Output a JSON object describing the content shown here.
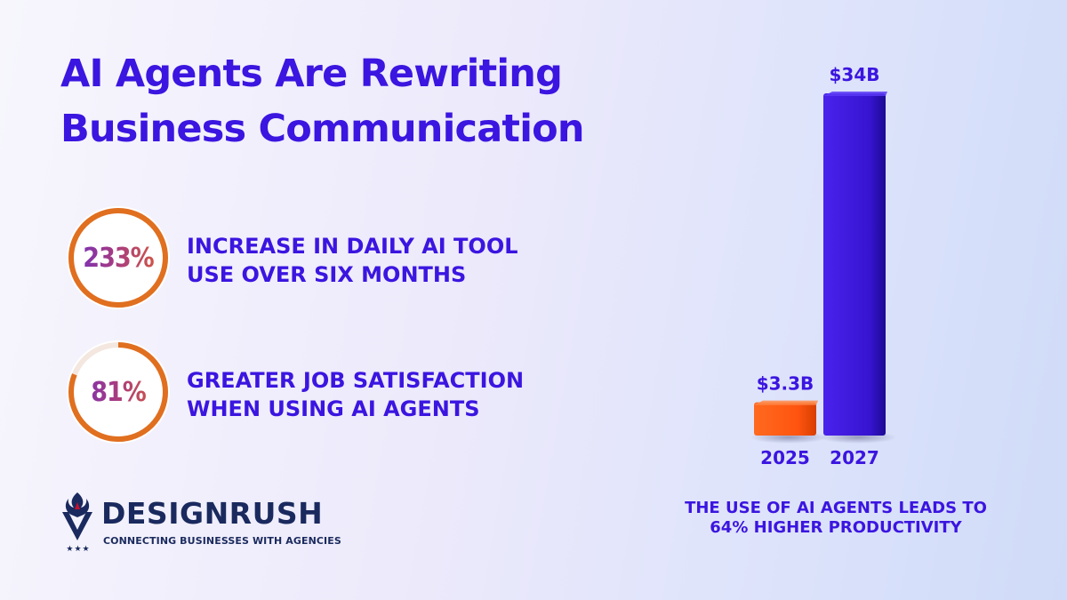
{
  "title": {
    "line1": "AI Agents Are Rewriting",
    "line2": "Business Communication"
  },
  "stats": [
    {
      "value": "233%",
      "ring_fraction": 1.0,
      "line1": "INCREASE IN DAILY AI TOOL",
      "line2": "USE OVER SIX MONTHS"
    },
    {
      "value": "81%",
      "ring_fraction": 0.81,
      "line1": "GREATER JOB SATISFACTION",
      "line2": "WHEN USING AI AGENTS"
    }
  ],
  "chart_data": {
    "type": "bar",
    "categories": [
      "2025",
      "2027"
    ],
    "values": [
      3.3,
      34
    ],
    "data_labels": [
      "$3.3B",
      "$34B"
    ],
    "colors": [
      "#ff5a14",
      "#3a14d8"
    ],
    "unit": "$B",
    "ylim": [
      0,
      34
    ],
    "title": "",
    "xlabel": "",
    "ylabel": ""
  },
  "caption": {
    "line1": "THE USE OF AI AGENTS LEADS TO",
    "line2": "64% HIGHER PRODUCTIVITY"
  },
  "brand": {
    "name": "DESIGNRUSH",
    "tagline": "CONNECTING BUSINESSES WITH AGENCIES",
    "stars": "★★★",
    "icon": "designrush-flame-shield-icon"
  },
  "colors": {
    "accent": "#3b15e0",
    "ring": "#e06f1f",
    "bar_2025": "#ff5a14",
    "bar_2027": "#3a14d8",
    "brand_navy": "#1a2a5e"
  }
}
